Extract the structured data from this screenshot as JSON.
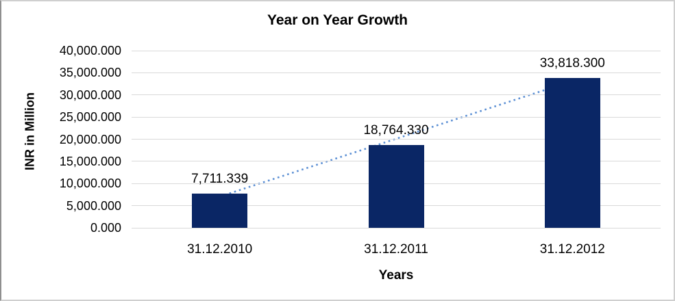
{
  "chart_data": {
    "type": "bar",
    "title": "Year on Year Growth",
    "xlabel": "Years",
    "ylabel": "INR in Million",
    "categories": [
      "31.12.2010",
      "31.12.2011",
      "31.12.2012"
    ],
    "values": [
      7711.339,
      18764.33,
      33818.3
    ],
    "value_labels": [
      "7,711.339",
      "18,764.330",
      "33,818.300"
    ],
    "ylim": [
      0,
      40000
    ],
    "ytick_step": 5000,
    "ytick_labels": [
      "0.000",
      "5,000.000",
      "10,000.000",
      "15,000.000",
      "20,000.000",
      "25,000.000",
      "30,000.000",
      "35,000.000",
      "40,000.000"
    ],
    "grid": true,
    "legend": "none",
    "trendline": {
      "type": "linear",
      "style": "dotted"
    },
    "colors": {
      "bar": "#0a2665",
      "trendline": "#5b8fd4",
      "gridline": "#d9d9d9",
      "text": "#000000",
      "background": "#ffffff",
      "frame_border": "#cfcfcf"
    }
  }
}
